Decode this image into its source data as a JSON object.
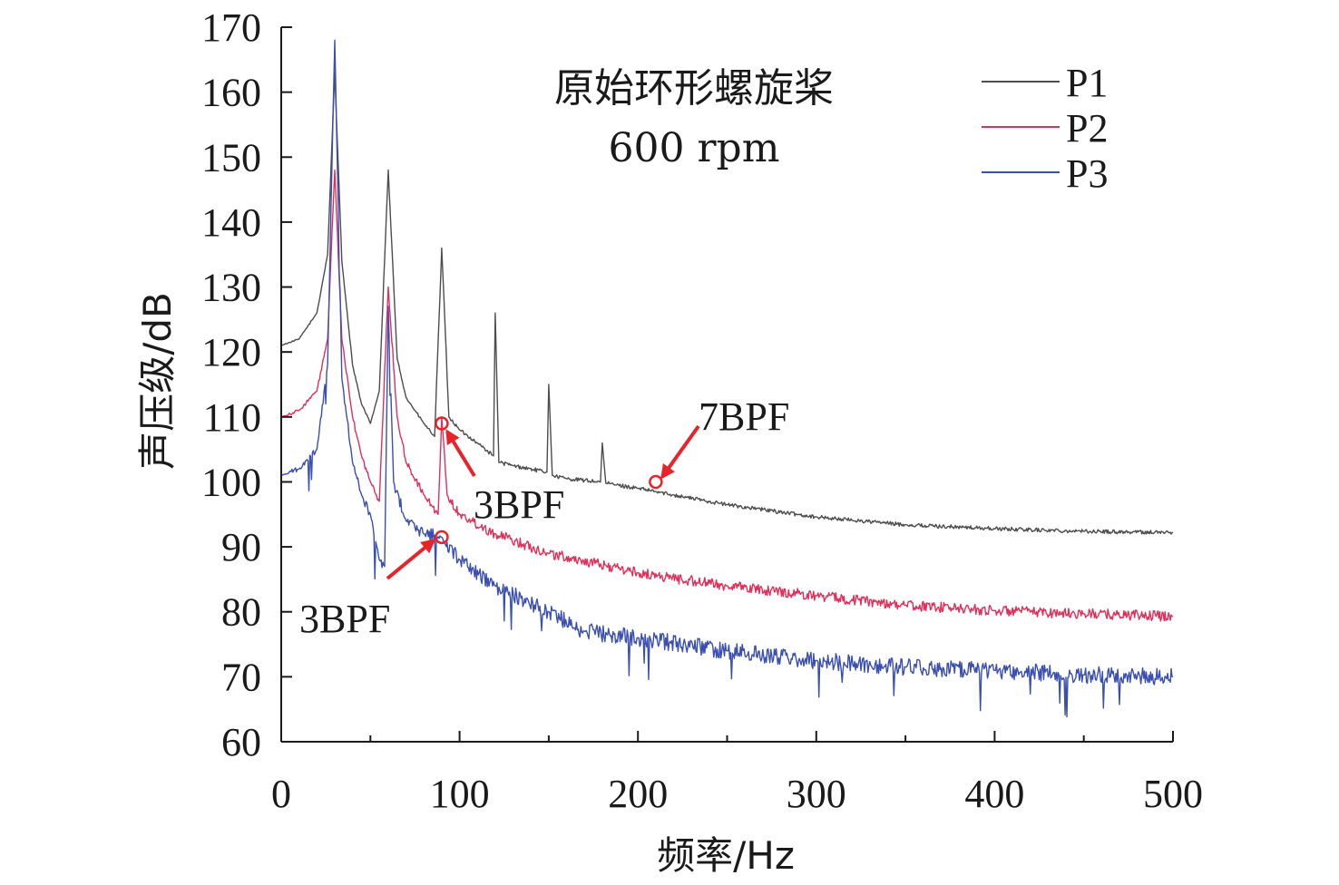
{
  "chart_data": {
    "type": "line",
    "title": "原始环形螺旋桨",
    "subtitle": "600 rpm",
    "xlabel": "频率/Hz",
    "ylabel": "声压级/dB",
    "xlim": [
      0,
      500
    ],
    "ylim": [
      60,
      170
    ],
    "xticks": [
      0,
      100,
      200,
      300,
      400,
      500
    ],
    "yticks": [
      60,
      70,
      80,
      90,
      100,
      110,
      120,
      130,
      140,
      150,
      160,
      170
    ],
    "grid": false,
    "legend_position": "top-right",
    "series": [
      {
        "name": "P1",
        "color": "#4d4d4d",
        "points": [
          [
            0,
            121
          ],
          [
            10,
            122
          ],
          [
            20,
            126
          ],
          [
            26,
            135
          ],
          [
            30,
            163
          ],
          [
            34,
            134
          ],
          [
            40,
            118
          ],
          [
            45,
            112
          ],
          [
            50,
            109
          ],
          [
            55,
            114
          ],
          [
            60,
            148
          ],
          [
            65,
            119
          ],
          [
            70,
            113
          ],
          [
            80,
            109
          ],
          [
            86,
            107
          ],
          [
            90,
            136
          ],
          [
            94,
            110
          ],
          [
            100,
            108
          ],
          [
            110,
            106
          ],
          [
            119,
            104
          ],
          [
            120,
            126
          ],
          [
            122,
            103
          ],
          [
            130,
            102.5
          ],
          [
            149,
            101.5
          ],
          [
            150,
            115
          ],
          [
            152,
            101
          ],
          [
            160,
            100.5
          ],
          [
            179,
            100
          ],
          [
            180,
            106
          ],
          [
            182,
            99.8
          ],
          [
            200,
            99
          ],
          [
            210,
            98.5
          ],
          [
            220,
            98
          ],
          [
            250,
            96.5
          ],
          [
            300,
            94.6
          ],
          [
            350,
            93.4
          ],
          [
            400,
            92.8
          ],
          [
            450,
            92.4
          ],
          [
            500,
            92.2
          ]
        ]
      },
      {
        "name": "P2",
        "color": "#e0305a",
        "points": [
          [
            0,
            110
          ],
          [
            10,
            111
          ],
          [
            20,
            114
          ],
          [
            26,
            122
          ],
          [
            30,
            148
          ],
          [
            34,
            122
          ],
          [
            40,
            110
          ],
          [
            45,
            104
          ],
          [
            50,
            100
          ],
          [
            55,
            97
          ],
          [
            60,
            130
          ],
          [
            65,
            110
          ],
          [
            70,
            103
          ],
          [
            80,
            98
          ],
          [
            88,
            95
          ],
          [
            90,
            110
          ],
          [
            93,
            98
          ],
          [
            100,
            95
          ],
          [
            120,
            92
          ],
          [
            150,
            89
          ],
          [
            200,
            86
          ],
          [
            250,
            84
          ],
          [
            300,
            82.5
          ],
          [
            350,
            81
          ],
          [
            400,
            80.2
          ],
          [
            450,
            79.7
          ],
          [
            500,
            79.3
          ]
        ]
      },
      {
        "name": "P3",
        "color": "#3a4fb0",
        "points": [
          [
            0,
            101
          ],
          [
            10,
            102
          ],
          [
            20,
            105
          ],
          [
            26,
            118
          ],
          [
            30,
            168
          ],
          [
            34,
            116
          ],
          [
            40,
            103
          ],
          [
            45,
            98
          ],
          [
            50,
            95
          ],
          [
            55,
            88
          ],
          [
            58,
            87
          ],
          [
            60,
            127
          ],
          [
            63,
            100
          ],
          [
            70,
            94
          ],
          [
            80,
            92
          ],
          [
            90,
            91.5
          ],
          [
            100,
            88
          ],
          [
            120,
            84
          ],
          [
            150,
            80
          ],
          [
            170,
            77
          ],
          [
            200,
            76
          ],
          [
            250,
            74
          ],
          [
            300,
            72.5
          ],
          [
            350,
            71.5
          ],
          [
            400,
            71
          ],
          [
            450,
            70.3
          ],
          [
            500,
            70
          ]
        ]
      }
    ],
    "annotations": [
      {
        "text": "7BPF",
        "series": "P1",
        "x": 210,
        "y": 100
      },
      {
        "text": "3BPF",
        "series": "P2",
        "x": 90,
        "y": 109
      },
      {
        "text": "3BPF",
        "series": "P3",
        "x": 90,
        "y": 91.5
      }
    ]
  }
}
